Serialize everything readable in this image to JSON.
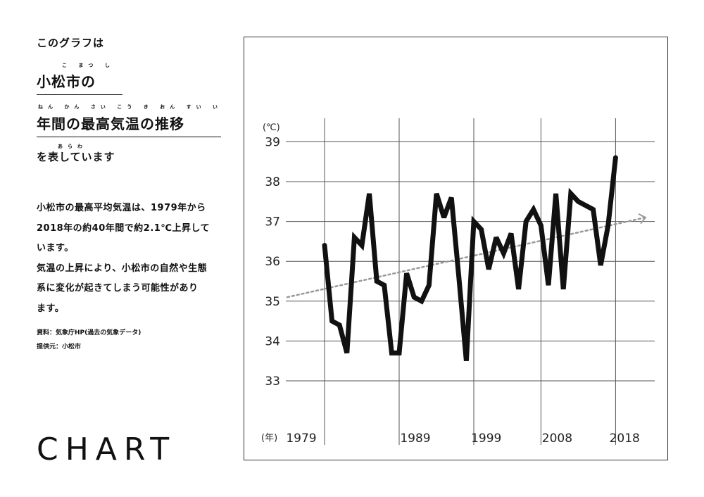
{
  "intro": "このグラフは",
  "headline": {
    "line1": "小松市の",
    "line1_ruby": "こ まつ し",
    "line2": "年間の最高気温の推移",
    "line2_ruby": "ねん かん   さい こう  き  おん     すい い",
    "line3": "を表しています",
    "line3_ruby": "あらわ"
  },
  "body": {
    "lines": [
      "小松市の最高平均気温は、1979年から",
      "2018年の約40年間で約2.1℃上昇して",
      "います。",
      "気温の上昇により、小松市の自然や生態",
      "系に変化が起きてしまう可能性があり",
      "ます。"
    ]
  },
  "source": "資料：気象庁HP(過去の気象データ)",
  "provider": "提供元：小松市",
  "logo": "CHART",
  "chart_data": {
    "type": "line",
    "ylabel": "(℃)",
    "xlabel": "(年)",
    "ylim": [
      32.5,
      39.5
    ],
    "yticks": [
      33,
      34,
      35,
      36,
      37,
      38,
      39
    ],
    "xticks": [
      1979,
      1989,
      1999,
      2008,
      2018
    ],
    "grid": true,
    "x": [
      1979,
      1980,
      1981,
      1982,
      1983,
      1984,
      1985,
      1986,
      1987,
      1988,
      1989,
      1990,
      1991,
      1992,
      1993,
      1994,
      1995,
      1996,
      1997,
      1998,
      1999,
      2000,
      2001,
      2002,
      2003,
      2004,
      2005,
      2006,
      2007,
      2008,
      2009,
      2010,
      2011,
      2012,
      2013,
      2014,
      2015,
      2016,
      2017,
      2018
    ],
    "series": [
      {
        "values": [
          36.4,
          34.5,
          34.4,
          33.7,
          36.6,
          36.4,
          37.7,
          35.5,
          35.4,
          33.7,
          33.7,
          35.7,
          35.1,
          35.0,
          35.4,
          37.7,
          37.1,
          37.6,
          35.6,
          33.5,
          37.0,
          36.8,
          35.8,
          36.6,
          36.2,
          36.7,
          35.3,
          37.0,
          37.3,
          36.9,
          35.4,
          37.7,
          35.3,
          37.7,
          37.5,
          37.4,
          37.3,
          35.9,
          36.9,
          38.6
        ],
        "color": "#111111"
      }
    ],
    "trend": {
      "from": [
        1974,
        35.1
      ],
      "to": [
        2022,
        37.1
      ],
      "color": "#999999",
      "style": "dotted"
    }
  }
}
